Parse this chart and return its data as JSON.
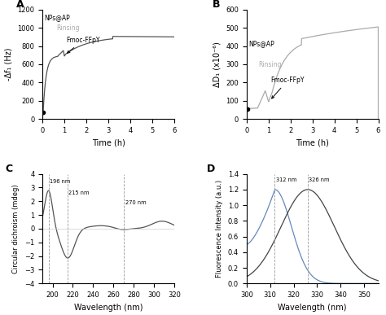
{
  "panel_A": {
    "label": "A",
    "ylabel": "-Δf₁ (Hz)",
    "xlabel": "Time (h)",
    "xlim": [
      0,
      6
    ],
    "ylim": [
      0,
      1200
    ],
    "yticks": [
      0,
      200,
      400,
      600,
      800,
      1000,
      1200
    ],
    "xticks": [
      0,
      1,
      2,
      3,
      4,
      5,
      6
    ],
    "color": "#555555"
  },
  "panel_B": {
    "label": "B",
    "ylabel": "ΔD₁ (x10⁻⁶)",
    "xlabel": "Time (h)",
    "xlim": [
      0,
      6
    ],
    "ylim": [
      0,
      600
    ],
    "yticks": [
      0,
      100,
      200,
      300,
      400,
      500,
      600
    ],
    "xticks": [
      0,
      1,
      2,
      3,
      4,
      5,
      6
    ],
    "color": "#aaaaaa"
  },
  "panel_C": {
    "label": "C",
    "ylabel": "Circular dichroism (mdeg)",
    "xlabel": "Wavelength (nm)",
    "xlim": [
      190,
      320
    ],
    "ylim": [
      -4,
      4
    ],
    "yticks": [
      -4,
      -3,
      -2,
      -1,
      0,
      1,
      2,
      3,
      4
    ],
    "xticks": [
      200,
      220,
      240,
      260,
      280,
      300,
      320
    ],
    "vlines": [
      196,
      215,
      270
    ],
    "vline_labels": [
      "196 nm",
      "215 nm",
      "270 nm"
    ],
    "color": "#555555"
  },
  "panel_D": {
    "label": "D",
    "ylabel": "Fluorescence Intensity (a.u.)",
    "xlabel": "Wavelength (nm)",
    "xlim": [
      300,
      356
    ],
    "ylim": [
      0.0,
      1.4
    ],
    "yticks": [
      0.0,
      0.2,
      0.4,
      0.6,
      0.8,
      1.0,
      1.2,
      1.4
    ],
    "xticks": [
      300,
      310,
      320,
      330,
      340,
      350
    ],
    "vlines": [
      312,
      326
    ],
    "vline_labels": [
      "312 nm",
      "326 nm"
    ],
    "color_blue": "#6688bb",
    "color_dark": "#444444"
  },
  "figure_bg": "#ffffff",
  "line_color_dark": "#555555",
  "line_color_light": "#aaaaaa"
}
